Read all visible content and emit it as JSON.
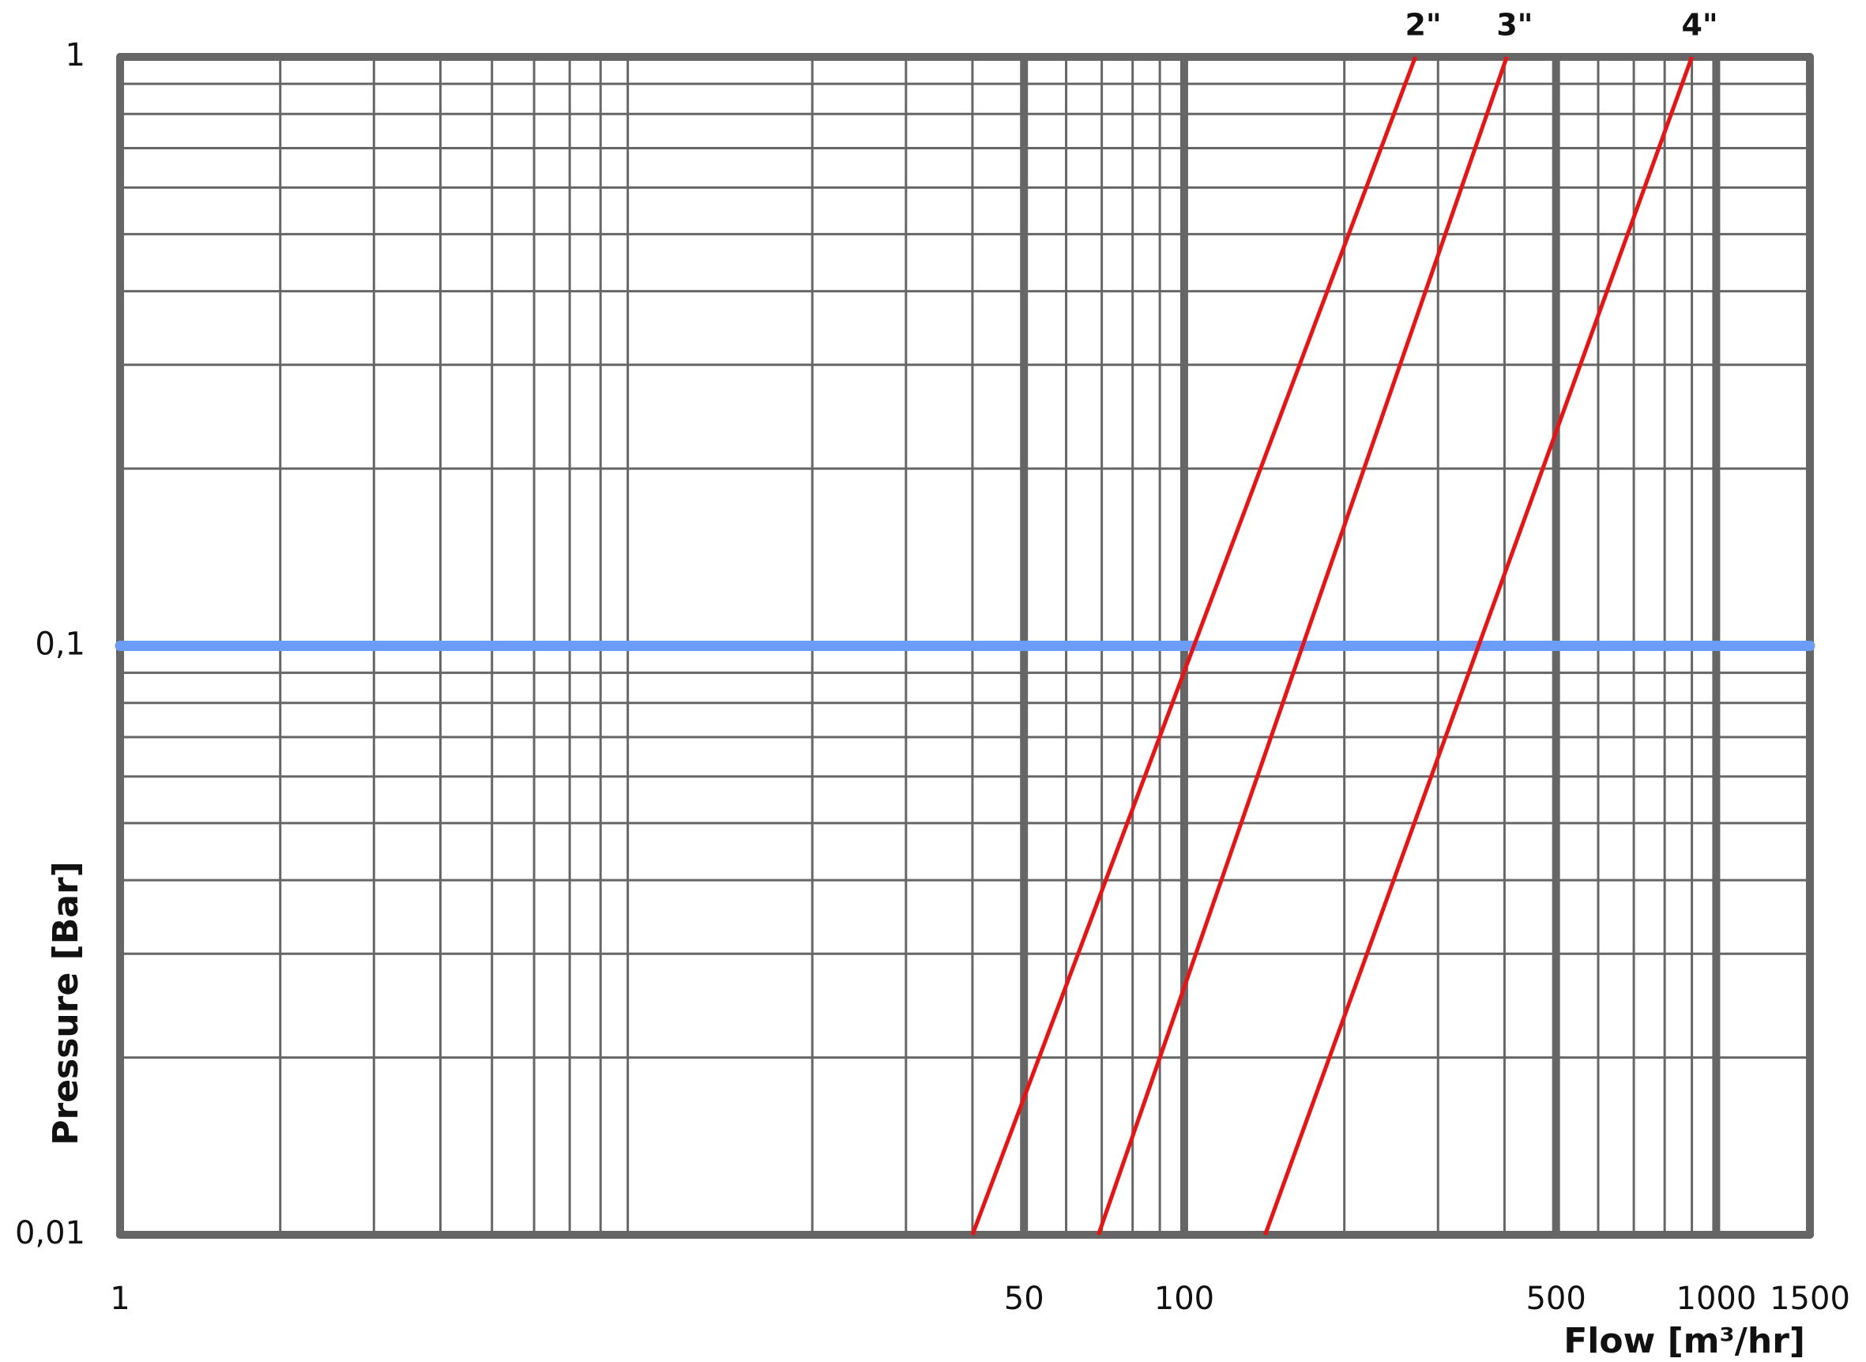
{
  "chart_data": {
    "type": "line",
    "x_label": "Flow [m³/hr]",
    "y_label": "Pressure [Bar]",
    "xscale": "log",
    "yscale": "log",
    "xlim": [
      1,
      1500
    ],
    "ylim": [
      0.01,
      1
    ],
    "xticks": [
      1,
      50,
      100,
      500,
      1000,
      1500
    ],
    "yticks": [
      {
        "value": 0.01,
        "label": "0,01"
      },
      {
        "value": 0.1,
        "label": "0,1"
      },
      1
    ],
    "grid": true,
    "reference_line": {
      "y": 0.1,
      "color": "#6a9cf8"
    },
    "series": [
      {
        "name": "2\"",
        "color": "#ee1111",
        "x": [
          40,
          272
        ],
        "values": [
          0.01,
          1
        ]
      },
      {
        "name": "3\"",
        "color": "#ee1111",
        "x": [
          69,
          404
        ],
        "values": [
          0.01,
          1
        ]
      },
      {
        "name": "4\"",
        "color": "#ee1111",
        "x": [
          142,
          900
        ],
        "values": [
          0.01,
          1
        ]
      }
    ]
  }
}
